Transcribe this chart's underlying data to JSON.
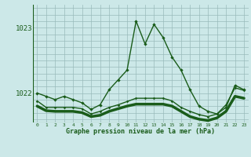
{
  "title": "Graphe pression niveau de la mer (hPa)",
  "xlabel_ticks": [
    0,
    1,
    2,
    3,
    4,
    5,
    6,
    7,
    8,
    9,
    10,
    11,
    12,
    13,
    14,
    15,
    16,
    17,
    18,
    19,
    20,
    21,
    22,
    23
  ],
  "yticks": [
    1022,
    1023
  ],
  "ylim": [
    1021.55,
    1023.35
  ],
  "xlim": [
    -0.5,
    23.5
  ],
  "bg_color": "#cce8e8",
  "line_color": "#1a5c1a",
  "grid_color": "#99bbbb",
  "series1_y": [
    1022.0,
    1021.95,
    1021.9,
    1021.95,
    1021.9,
    1021.85,
    1021.75,
    1021.82,
    1022.05,
    1022.2,
    1022.35,
    1023.1,
    1022.75,
    1023.05,
    1022.85,
    1022.55,
    1022.35,
    1022.05,
    1021.8,
    1021.72,
    1021.68,
    1021.78,
    1022.12,
    1022.05
  ],
  "series2_y": [
    1021.88,
    1021.78,
    1021.78,
    1021.78,
    1021.78,
    1021.76,
    1021.68,
    1021.72,
    1021.78,
    1021.82,
    1021.87,
    1021.92,
    1021.92,
    1021.92,
    1021.92,
    1021.88,
    1021.78,
    1021.72,
    1021.67,
    1021.64,
    1021.68,
    1021.82,
    1022.08,
    1022.04
  ],
  "series3_y": [
    1021.8,
    1021.73,
    1021.72,
    1021.72,
    1021.72,
    1021.7,
    1021.64,
    1021.66,
    1021.72,
    1021.76,
    1021.8,
    1021.83,
    1021.83,
    1021.83,
    1021.83,
    1021.8,
    1021.72,
    1021.64,
    1021.6,
    1021.58,
    1021.62,
    1021.72,
    1021.95,
    1021.92
  ]
}
